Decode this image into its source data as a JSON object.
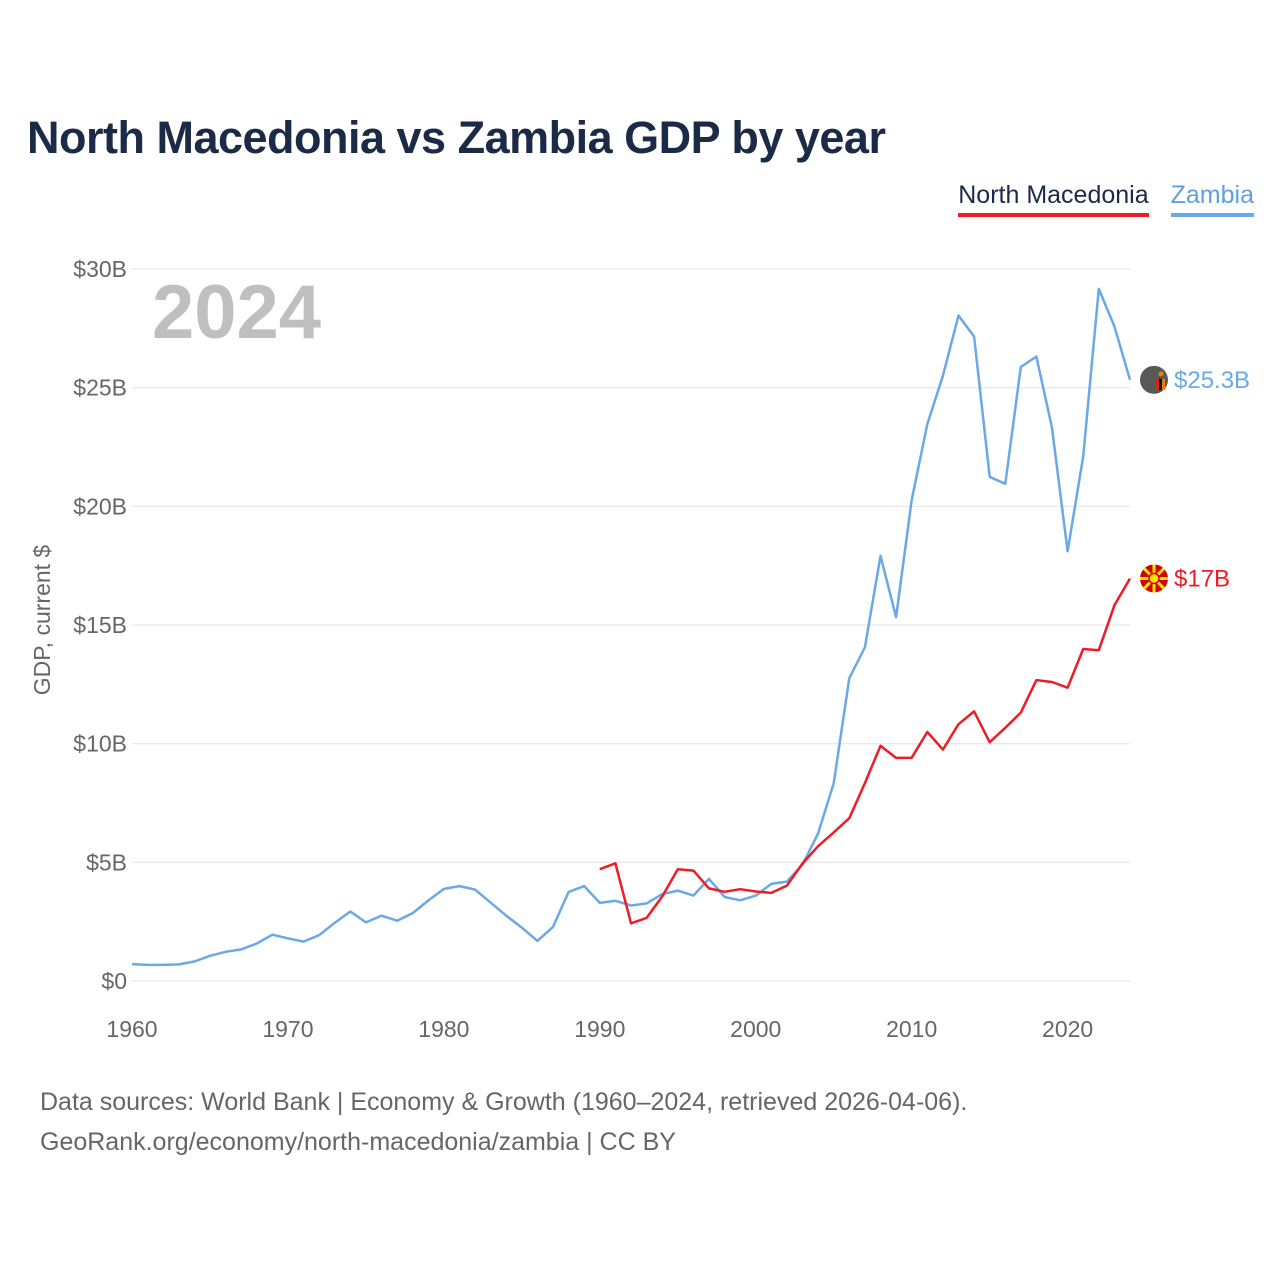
{
  "title": "North Macedonia vs Zambia GDP by year",
  "legend": {
    "north_macedonia": "North Macedonia",
    "zambia": "Zambia"
  },
  "year_label": "2024",
  "footer": {
    "line1": "Data sources: World Bank | Economy & Growth (1960–2024, retrieved 2026-04-06).",
    "line2": "GeoRank.org/economy/north-macedonia/zambia | CC BY"
  },
  "colors": {
    "north_macedonia": "#ee1c25",
    "zambia": "#6aa9e6",
    "grid": "#e6e6e6",
    "axis_text": "#666666"
  },
  "chart_data": {
    "type": "line",
    "title": "North Macedonia vs Zambia GDP by year",
    "xlabel": "",
    "ylabel": "GDP, current $",
    "xlim": [
      1960,
      2024
    ],
    "ylim": [
      0,
      30
    ],
    "y_unit": "billion USD",
    "grid": true,
    "legend_position": "top-right",
    "x_ticks": [
      1960,
      1970,
      1980,
      1990,
      2000,
      2010,
      2020
    ],
    "x_tick_labels": [
      "1960",
      "1970",
      "1980",
      "1990",
      "2000",
      "2010",
      "2020"
    ],
    "y_ticks": [
      0,
      5,
      10,
      15,
      20,
      25,
      30
    ],
    "y_tick_labels": [
      "$0",
      "$5B",
      "$10B",
      "$15B",
      "$20B",
      "$25B",
      "$30B"
    ],
    "series": [
      {
        "name": "Zambia",
        "color": "#6aa9e6",
        "end_label": "$25.3B",
        "x": [
          1960,
          1961,
          1962,
          1963,
          1964,
          1965,
          1966,
          1967,
          1968,
          1969,
          1970,
          1971,
          1972,
          1973,
          1974,
          1975,
          1976,
          1977,
          1978,
          1979,
          1980,
          1981,
          1982,
          1983,
          1984,
          1985,
          1986,
          1987,
          1988,
          1989,
          1990,
          1991,
          1992,
          1993,
          1994,
          1995,
          1996,
          1997,
          1998,
          1999,
          2000,
          2001,
          2002,
          2003,
          2004,
          2005,
          2006,
          2007,
          2008,
          2009,
          2010,
          2011,
          2012,
          2013,
          2014,
          2015,
          2016,
          2017,
          2018,
          2019,
          2020,
          2021,
          2022,
          2023,
          2024
        ],
        "values": [
          0.71,
          0.68,
          0.68,
          0.7,
          0.82,
          1.06,
          1.23,
          1.33,
          1.58,
          1.95,
          1.8,
          1.66,
          1.93,
          2.45,
          2.93,
          2.47,
          2.75,
          2.54,
          2.86,
          3.39,
          3.88,
          4.0,
          3.85,
          3.3,
          2.75,
          2.25,
          1.69,
          2.28,
          3.75,
          4.0,
          3.29,
          3.38,
          3.18,
          3.27,
          3.66,
          3.81,
          3.6,
          4.3,
          3.54,
          3.4,
          3.6,
          4.09,
          4.19,
          4.9,
          6.22,
          8.33,
          12.76,
          14.06,
          17.91,
          15.33,
          20.27,
          23.46,
          25.5,
          28.04,
          27.15,
          21.24,
          20.95,
          25.87,
          26.31,
          23.31,
          18.11,
          22.1,
          29.16,
          27.58,
          25.33
        ]
      },
      {
        "name": "North Macedonia",
        "color": "#ee1c25",
        "end_label": "$17B",
        "x": [
          1990,
          1991,
          1992,
          1993,
          1994,
          1995,
          1996,
          1997,
          1998,
          1999,
          2000,
          2001,
          2002,
          2003,
          2004,
          2005,
          2006,
          2007,
          2008,
          2009,
          2010,
          2011,
          2012,
          2013,
          2014,
          2015,
          2016,
          2017,
          2018,
          2019,
          2020,
          2021,
          2022,
          2023,
          2024
        ],
        "values": [
          4.71,
          4.96,
          2.43,
          2.66,
          3.56,
          4.71,
          4.65,
          3.9,
          3.76,
          3.87,
          3.77,
          3.71,
          4.02,
          4.95,
          5.68,
          6.26,
          6.86,
          8.34,
          9.91,
          9.4,
          9.41,
          10.49,
          9.75,
          10.82,
          11.36,
          10.06,
          10.67,
          11.31,
          12.68,
          12.6,
          12.36,
          13.99,
          13.94,
          15.83,
          16.96
        ]
      }
    ]
  }
}
